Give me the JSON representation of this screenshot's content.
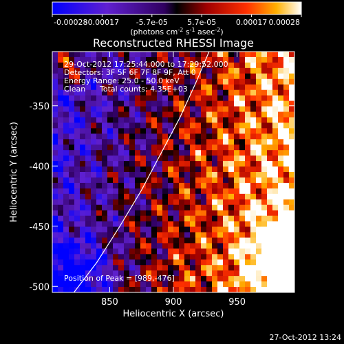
{
  "chart_data": {
    "type": "heatmap",
    "title": "Reconstructed RHESSI Image",
    "xlabel": "Heliocentric X (arcsec)",
    "ylabel": "Heliocentric Y (arcsec)",
    "xlim": [
      805,
      995
    ],
    "ylim": [
      -505,
      -305
    ],
    "x_ticks": [
      850,
      900,
      950
    ],
    "y_ticks": [
      -350,
      -400,
      -450,
      -500
    ],
    "colorbar": {
      "min": -0.00028,
      "max": 0.00028,
      "ticks": [
        "-0.00028",
        "-0.00017",
        "-5.7e-05",
        "5.7e-05",
        "0.00017",
        "0.00028"
      ],
      "label_main": "(photons cm",
      "label_sup1": "-2",
      "label_mid1": " s",
      "label_sup2": "-1",
      "label_mid2": " asec",
      "label_sup3": "-2",
      "label_end": ")"
    },
    "annotations": {
      "time_range": "29-Oct-2012 17:25:44.000 to 17:29:52.000",
      "detectors": "Detectors: 3F 5F 6F 7F 8F 9F, Att 0",
      "energy": "Energy Range: 25.0 - 50.0 keV",
      "method": "Clean",
      "counts": "Total counts: 4.35E+03",
      "peak": "Position of Peak = [989,-476]"
    },
    "peak_position": [
      989,
      -476
    ],
    "limb_curve": [
      [
        822,
        -505
      ],
      [
        840,
        -480
      ],
      [
        858,
        -450
      ],
      [
        875,
        -420
      ],
      [
        890,
        -390
      ],
      [
        905,
        -360
      ],
      [
        918,
        -330
      ],
      [
        928,
        -305
      ]
    ],
    "grid": false,
    "legend": "none"
  },
  "footer": {
    "timestamp": "27-Oct-2012 13:24"
  }
}
